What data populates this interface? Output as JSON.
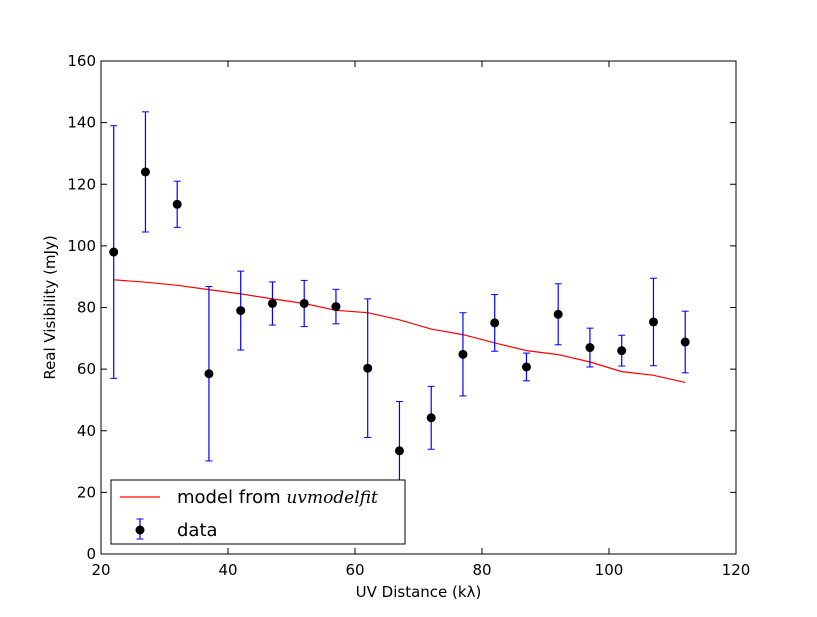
{
  "chart_data": {
    "type": "scatter",
    "xlabel": "UV Distance (kλ)",
    "ylabel": "Real Visibility (mJy)",
    "xlim": [
      20,
      120
    ],
    "ylim": [
      0,
      160
    ],
    "x_ticks": [
      20,
      40,
      60,
      80,
      100,
      120
    ],
    "y_ticks": [
      0,
      20,
      40,
      60,
      80,
      100,
      120,
      140,
      160
    ],
    "grid": false,
    "legend_position": "lower-left",
    "series": [
      {
        "name": "data",
        "kind": "errorbar",
        "color": "#000000",
        "error_color": "#0000ff",
        "x": [
          22,
          27,
          32,
          37,
          42,
          47,
          52,
          57,
          62,
          67,
          72,
          77,
          82,
          87,
          92,
          97,
          102,
          107,
          112
        ],
        "y": [
          98,
          124,
          113.5,
          58.5,
          79,
          81.3,
          81.3,
          80.3,
          60.3,
          33.5,
          44.2,
          64.8,
          75,
          60.7,
          77.8,
          67,
          66,
          75.3,
          68.8
        ],
        "err": [
          41,
          19.5,
          7.5,
          28.3,
          12.8,
          7,
          7.5,
          5.6,
          22.5,
          16,
          10.2,
          13.5,
          9.2,
          4.5,
          9.9,
          6.3,
          5,
          14.2,
          10
        ]
      },
      {
        "name": "model from ",
        "name_italic": "uvmodelfit",
        "kind": "line",
        "color": "#ff0000",
        "x": [
          22,
          27,
          32,
          37,
          42,
          47,
          52,
          57,
          62,
          67,
          72,
          77,
          82,
          87,
          92,
          97,
          102,
          107,
          112
        ],
        "y": [
          89,
          88.2,
          87.2,
          85.8,
          84.4,
          82.8,
          81.3,
          79.1,
          78.3,
          76,
          73,
          71.2,
          68.5,
          66,
          64.7,
          62.3,
          59.2,
          58,
          55.7
        ]
      }
    ]
  }
}
